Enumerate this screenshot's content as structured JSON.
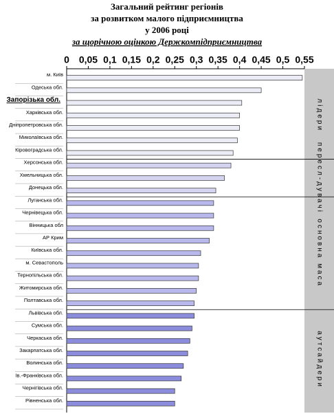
{
  "chart_data": {
    "type": "bar",
    "orientation": "horizontal",
    "title": [
      "Загальний рейтинг регіонів",
      "за розвитком малого підприємництва",
      "у 2006 році"
    ],
    "subtitle": "за щорічною оцінкою Держкомпідприємництва",
    "xlim": [
      0,
      0.55
    ],
    "xticks": [
      0,
      {
        "value": 0.05,
        "label": "0,05"
      },
      {
        "value": 0.1,
        "label": "0,1"
      },
      {
        "value": 0.15,
        "label": "0,15"
      },
      {
        "value": 0.2,
        "label": "0,2"
      },
      {
        "value": 0.25,
        "label": "0,25"
      },
      {
        "value": 0.3,
        "label": "0,3"
      },
      {
        "value": 0.35,
        "label": "0,35"
      },
      {
        "value": 0.4,
        "label": "0,4"
      },
      {
        "value": 0.45,
        "label": "0,45"
      },
      {
        "value": 0.5,
        "label": "0,5"
      },
      {
        "value": 0.55,
        "label": "0,55"
      }
    ],
    "groups": [
      {
        "name": "лідери",
        "color": "#ececf6",
        "categories": [
          "м. Київ",
          "Одеська обл.",
          "Запорізька обл.",
          "Харківська обл.",
          "Дніпропетровська обл.",
          "Миколаївська обл.",
          "Кіровоградська обл."
        ],
        "values": [
          0.545,
          0.45,
          0.405,
          0.4,
          0.4,
          0.395,
          0.385
        ]
      },
      {
        "name": "пересл-дувачі",
        "color": "#d4d4f0",
        "categories": [
          "Херсонська обл.",
          "Хмельницька обл.",
          "Донецька обл."
        ],
        "values": [
          0.38,
          0.365,
          0.345
        ]
      },
      {
        "name": "основна маса",
        "color": "#b8b8ec",
        "categories": [
          "Луганська обл.",
          "Чернівецька обл.",
          "Вінницька обл",
          "АР Крим",
          "Київська обл.",
          "м. Севастополь",
          "Тернопільська обл.",
          "Житомирська обл.",
          "Полтавська обл."
        ],
        "values": [
          0.34,
          0.34,
          0.34,
          0.33,
          0.31,
          0.305,
          0.305,
          0.3,
          0.295
        ]
      },
      {
        "name": "аутсайдери",
        "color": "#8c8cdc",
        "categories": [
          "Львівська обл.",
          "Сумська обл.",
          "Черкаська обл.",
          "Закарпатська обл.",
          "Волинська обл.",
          "Ів.-Франківська обл.",
          "Чернігівська обл.",
          "Рівненська обл."
        ],
        "values": [
          0.295,
          0.29,
          0.285,
          0.28,
          0.27,
          0.265,
          0.25,
          0.25
        ]
      }
    ]
  }
}
